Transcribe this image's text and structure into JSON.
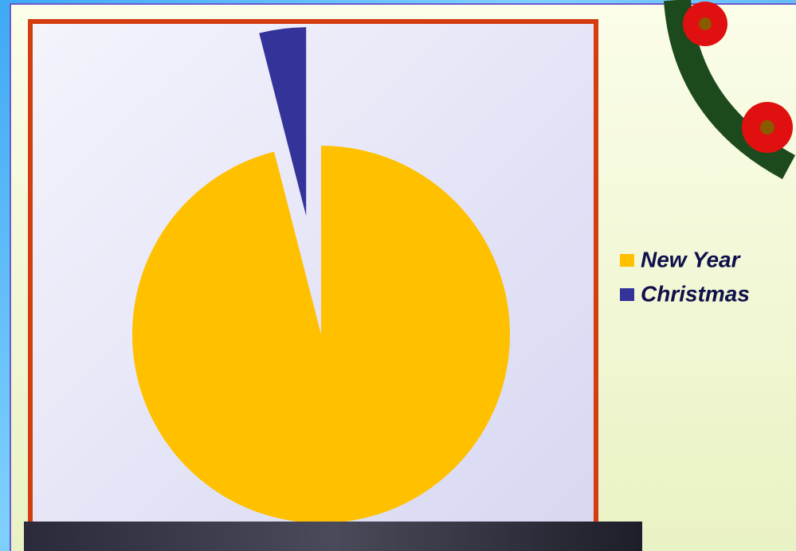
{
  "chart_data": {
    "type": "pie",
    "categories": [
      "New Year",
      "Christmas"
    ],
    "values": [
      96,
      4
    ],
    "colors": [
      "#ffc000",
      "#333399"
    ],
    "legend": "right"
  }
}
